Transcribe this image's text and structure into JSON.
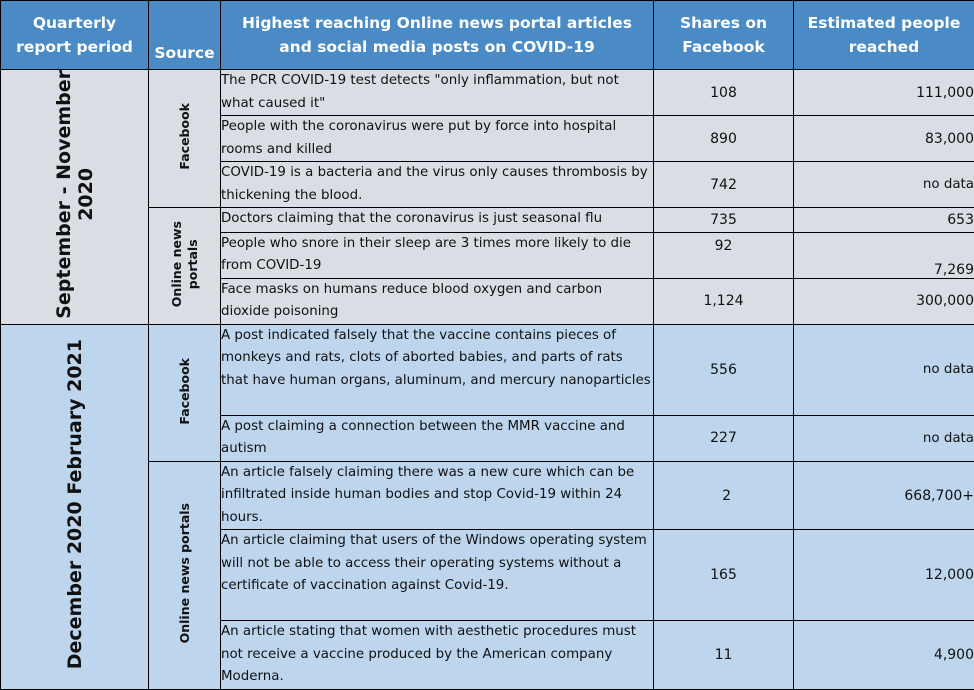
{
  "header": {
    "period_line1": "Quarterly",
    "period_line2": "report period",
    "source": "Source",
    "articles_line1": "Highest reaching Online news portal articles",
    "articles_line2": "and social media posts on COVID-19",
    "shares_line1": "Shares on",
    "shares_line2": "Facebook",
    "reach_line1": "Estimated people",
    "reach_line2": "reached"
  },
  "groups": [
    {
      "period_line1": "September - November",
      "period_line2": "2020",
      "sources": [
        {
          "label_line1": "Facebook",
          "label_line2": "",
          "rows": [
            {
              "article": "The PCR COVID-19 test detects \"only inflammation, but not what caused it\"",
              "shares": "108",
              "reached": "111,000"
            },
            {
              "article": "People with the coronavirus were put by force into hospital rooms and killed",
              "shares": "890",
              "reached": "83,000"
            },
            {
              "article": "COVID-19 is a bacteria and the virus only causes thrombosis by thickening the blood.",
              "shares": "742",
              "reached": "no data"
            }
          ]
        },
        {
          "label_line1": "Online news",
          "label_line2": "portals",
          "rows": [
            {
              "article": "Doctors claiming that the coronavirus is just seasonal flu",
              "shares": "735",
              "reached": "653"
            },
            {
              "article": "People who snore in their sleep are 3 times more likely to die from COVID-19",
              "shares": "92",
              "reached": "7,269"
            },
            {
              "article": "Face masks on humans reduce blood oxygen and carbon dioxide poisoning",
              "shares": "1,124",
              "reached": "300,000"
            }
          ]
        }
      ]
    },
    {
      "period_line1": "December 2020  February 2021",
      "period_line2": "",
      "sources": [
        {
          "label_line1": "Facebook",
          "label_line2": "",
          "rows": [
            {
              "article": "A post indicated falsely that the vaccine contains pieces of monkeys and rats, clots of aborted babies, and parts of rats that have human organs, aluminum, and mercury nanoparticles",
              "shares": "556",
              "reached": "no data"
            },
            {
              "article": "A post claiming a connection between the MMR vaccine and autism",
              "shares": "227",
              "reached": "no data"
            }
          ]
        },
        {
          "label_line1": "Online news portals",
          "label_line2": "",
          "rows": [
            {
              "article": "An article falsely claiming there was a new cure which can be infiltrated inside human bodies and stop Covid-19 within 24 hours.",
              "shares": "2",
              "reached": "668,700+"
            },
            {
              "article": "An article claiming that users of the Windows operating system will not be able to access their operating systems without a certificate of vaccination against Covid-19.",
              "shares": "165",
              "reached": "12,000"
            },
            {
              "article": "An article stating that women with aesthetic procedures must not receive a vaccine produced by the American company Moderna.",
              "shares": "11",
              "reached": "4,900"
            }
          ]
        }
      ]
    }
  ]
}
